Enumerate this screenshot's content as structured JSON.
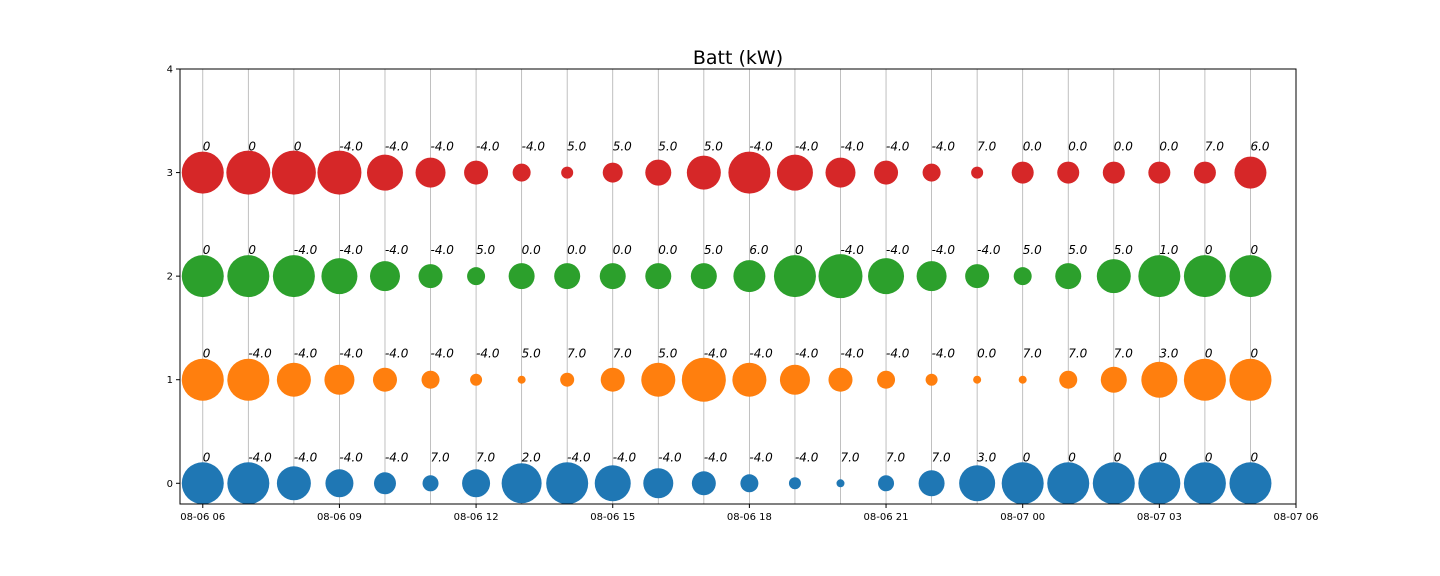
{
  "chart_data": {
    "type": "scatter",
    "title": "Batt (kW)",
    "xlabel": "",
    "ylabel": "",
    "grid": "x-only",
    "x_range": [
      "2024-08-06 05:30",
      "2024-08-07 06:00"
    ],
    "ylim": [
      -0.2,
      4
    ],
    "y_ticks": [
      0,
      1,
      2,
      3,
      4
    ],
    "x_ticks": [
      {
        "time": "2024-08-06 06:00",
        "label": "08-06 06"
      },
      {
        "time": "2024-08-06 09:00",
        "label": "08-06 09"
      },
      {
        "time": "2024-08-06 12:00",
        "label": "08-06 12"
      },
      {
        "time": "2024-08-06 15:00",
        "label": "08-06 15"
      },
      {
        "time": "2024-08-06 18:00",
        "label": "08-06 18"
      },
      {
        "time": "2024-08-06 21:00",
        "label": "08-06 21"
      },
      {
        "time": "2024-08-07 00:00",
        "label": "08-07 00"
      },
      {
        "time": "2024-08-07 03:00",
        "label": "08-07 03"
      },
      {
        "time": "2024-08-07 06:00",
        "label": "08-07 06"
      }
    ],
    "x": [
      "2024-08-06 06:00",
      "2024-08-06 07:00",
      "2024-08-06 08:00",
      "2024-08-06 09:00",
      "2024-08-06 10:00",
      "2024-08-06 11:00",
      "2024-08-06 12:00",
      "2024-08-06 13:00",
      "2024-08-06 14:00",
      "2024-08-06 15:00",
      "2024-08-06 16:00",
      "2024-08-06 17:00",
      "2024-08-06 18:00",
      "2024-08-06 19:00",
      "2024-08-06 20:00",
      "2024-08-06 21:00",
      "2024-08-06 22:00",
      "2024-08-06 23:00",
      "2024-08-07 00:00",
      "2024-08-07 01:00",
      "2024-08-07 02:00",
      "2024-08-07 03:00",
      "2024-08-07 04:00",
      "2024-08-07 05:00"
    ],
    "series": [
      {
        "y": 0,
        "color": "#1f77b4",
        "labels": [
          "0",
          "-4.0",
          "-4.0",
          "-4.0",
          "-4.0",
          "7.0",
          "7.0",
          "2.0",
          "-4.0",
          "-4.0",
          "-4.0",
          "-4.0",
          "-4.0",
          "-4.0",
          "7.0",
          "7.0",
          "7.0",
          "3.0",
          "0",
          "0",
          "0",
          "0",
          "0",
          "0"
        ],
        "sizes": [
          21,
          21,
          17,
          14,
          11,
          8,
          14,
          20,
          21,
          18,
          15,
          12,
          9,
          6,
          4,
          8,
          13,
          18,
          21,
          21,
          21,
          21,
          21,
          21
        ]
      },
      {
        "y": 1,
        "color": "#ff7f0e",
        "labels": [
          "0",
          "-4.0",
          "-4.0",
          "-4.0",
          "-4.0",
          "-4.0",
          "-4.0",
          "5.0",
          "7.0",
          "7.0",
          "5.0",
          "-4.0",
          "-4.0",
          "-4.0",
          "-4.0",
          "-4.0",
          "-4.0",
          "0.0",
          "7.0",
          "7.0",
          "7.0",
          "3.0",
          "0",
          "0"
        ],
        "sizes": [
          21,
          21,
          17,
          15,
          12,
          9,
          6,
          4,
          7,
          12,
          17,
          22,
          17,
          15,
          12,
          9,
          6,
          4,
          4,
          9,
          13,
          18,
          21,
          21
        ]
      },
      {
        "y": 2,
        "color": "#2ca02c",
        "labels": [
          "0",
          "0",
          "-4.0",
          "-4.0",
          "-4.0",
          "-4.0",
          "5.0",
          "0.0",
          "0.0",
          "0.0",
          "0.0",
          "5.0",
          "6.0",
          "0",
          "-4.0",
          "-4.0",
          "-4.0",
          "-4.0",
          "5.0",
          "5.0",
          "5.0",
          "1.0",
          "0",
          "0"
        ],
        "sizes": [
          21,
          21,
          21,
          18,
          15,
          12,
          9,
          13,
          13,
          13,
          13,
          13,
          16,
          21,
          22,
          18,
          15,
          12,
          9,
          13,
          17,
          21,
          21,
          21
        ]
      },
      {
        "y": 3,
        "color": "#d62728",
        "labels": [
          "0",
          "0",
          "0",
          "-4.0",
          "-4.0",
          "-4.0",
          "-4.0",
          "-4.0",
          "5.0",
          "5.0",
          "5.0",
          "5.0",
          "-4.0",
          "-4.0",
          "-4.0",
          "-4.0",
          "-4.0",
          "7.0",
          "0.0",
          "0.0",
          "0.0",
          "0.0",
          "7.0",
          "6.0"
        ],
        "sizes": [
          21,
          22,
          22,
          22,
          18,
          15,
          12,
          9,
          6,
          10,
          13,
          17,
          21,
          18,
          15,
          12,
          9,
          6,
          11,
          11,
          11,
          11,
          11,
          16
        ]
      }
    ]
  }
}
